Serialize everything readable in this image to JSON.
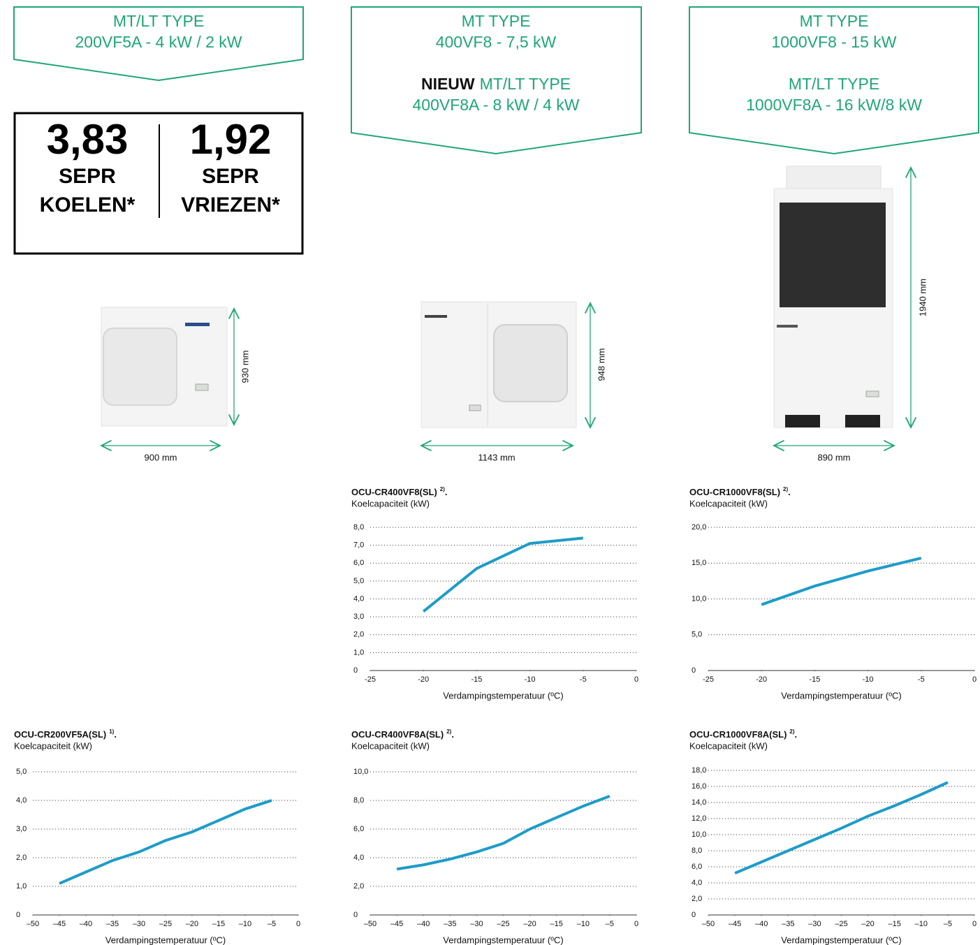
{
  "banners": [
    {
      "groups": [
        [
          "MT/LT TYPE",
          "200VF5A - 4 kW / 2 kW"
        ]
      ]
    },
    {
      "groups": [
        [
          "MT TYPE",
          "400VF8 - 7,5 kW"
        ],
        [
          "MT/LT TYPE",
          "400VF8A - 8 kW / 4 kW"
        ]
      ],
      "badge": "NIEUW"
    },
    {
      "groups": [
        [
          "MT TYPE",
          "1000VF8 - 15 kW"
        ],
        [
          "MT/LT TYPE",
          "1000VF8A - 16 kW/8 kW"
        ]
      ]
    }
  ],
  "sepr": [
    {
      "value": "3,83",
      "label": "SEPR",
      "mode": "KOELEN*"
    },
    {
      "value": "1,92",
      "label": "SEPR",
      "mode": "VRIEZEN*"
    }
  ],
  "products": [
    {
      "height": "930 mm",
      "width": "900 mm"
    },
    {
      "height": "948 mm",
      "width": "1143 mm"
    },
    {
      "height": "1940 mm",
      "width": "890 mm"
    }
  ],
  "chart_data": [
    {
      "type": "line",
      "title": "OCU-CR400VF8(SL)",
      "title_note": "2)",
      "title_end": ".",
      "y_label": "Koelcapaciteit (kW)",
      "x_label": "Verdampingstemperatuur (ºC)",
      "x": [
        -20,
        -15,
        -10,
        -5
      ],
      "series": [
        {
          "color": "#1e9cc8",
          "values": [
            3.3,
            5.7,
            7.1,
            7.4
          ]
        }
      ],
      "xlim": [
        -25,
        0
      ],
      "xticks": [
        -25,
        -20,
        -15,
        -10,
        -5,
        0
      ],
      "ylim": [
        0,
        8
      ],
      "yticks": [
        0,
        {
          "value": 1,
          "label": "1,0"
        },
        {
          "value": 2,
          "label": "2,0"
        },
        {
          "value": 3,
          "label": "3,0"
        },
        {
          "value": 4,
          "label": "4,0"
        },
        {
          "value": 5,
          "label": "5,0"
        },
        {
          "value": 6,
          "label": "6,0"
        },
        {
          "value": 7,
          "label": "7,0"
        },
        {
          "value": 8,
          "label": "8,0"
        }
      ],
      "grid": true
    },
    {
      "type": "line",
      "title": "OCU-CR1000VF8(SL)",
      "title_note": "2)",
      "title_end": ".",
      "y_label": "Koelcapaciteit (kW)",
      "x_label": "Verdampingstemperatuur (ºC)",
      "x": [
        -20,
        -15,
        -10,
        -5
      ],
      "series": [
        {
          "color": "#1e9cc8",
          "values": [
            9.2,
            11.8,
            13.9,
            15.7
          ]
        }
      ],
      "xlim": [
        -25,
        0
      ],
      "xticks": [
        -25,
        -20,
        -15,
        -10,
        -5,
        0
      ],
      "ylim": [
        0,
        20
      ],
      "yticks": [
        0,
        {
          "value": 5,
          "label": "5,0"
        },
        {
          "value": 10,
          "label": "10,0"
        },
        {
          "value": 15,
          "label": "15,0"
        },
        {
          "value": 20,
          "label": "20,0"
        }
      ],
      "grid": true
    },
    {
      "type": "line",
      "title": "OCU-CR200VF5A(SL)",
      "title_note": "1)",
      "title_end": ".",
      "y_label": "Koelcapaciteit (kW)",
      "x_label": "Verdampingstemperatuur (ºC)",
      "x": [
        -45,
        -40,
        -35,
        -30,
        -25,
        -20,
        -15,
        -10,
        -5
      ],
      "series": [
        {
          "color": "#1e9cc8",
          "values": [
            1.1,
            1.5,
            1.9,
            2.2,
            2.6,
            2.9,
            3.3,
            3.7,
            4.0
          ]
        }
      ],
      "xlim": [
        -50,
        0
      ],
      "xticks": [
        {
          "value": -50,
          "label": "–50"
        },
        {
          "value": -45,
          "label": "–45"
        },
        {
          "value": -40,
          "label": "–40"
        },
        {
          "value": -35,
          "label": "–35"
        },
        {
          "value": -30,
          "label": "–30"
        },
        {
          "value": -25,
          "label": "–25"
        },
        {
          "value": -20,
          "label": "–20"
        },
        {
          "value": -15,
          "label": "–15"
        },
        {
          "value": -10,
          "label": "–10"
        },
        {
          "value": -5,
          "label": "–5"
        },
        0
      ],
      "ylim": [
        0,
        5
      ],
      "yticks": [
        0,
        {
          "value": 1,
          "label": "1,0"
        },
        {
          "value": 2,
          "label": "2,0"
        },
        {
          "value": 3,
          "label": "3,0"
        },
        {
          "value": 4,
          "label": "4,0"
        },
        {
          "value": 5,
          "label": "5,0"
        }
      ],
      "grid": true
    },
    {
      "type": "line",
      "title": "OCU-CR400VF8A(SL)",
      "title_note": "2)",
      "title_end": ".",
      "y_label": "Koelcapaciteit (kW)",
      "x_label": "Verdampingstemperatuur (ºC)",
      "x": [
        -45,
        -40,
        -35,
        -30,
        -25,
        -20,
        -15,
        -10,
        -5
      ],
      "series": [
        {
          "color": "#1e9cc8",
          "values": [
            3.2,
            3.5,
            3.9,
            4.4,
            5.0,
            6.0,
            6.8,
            7.6,
            8.3
          ]
        }
      ],
      "xlim": [
        -50,
        0
      ],
      "xticks": [
        {
          "value": -50,
          "label": "–50"
        },
        {
          "value": -45,
          "label": "–45"
        },
        {
          "value": -40,
          "label": "–40"
        },
        {
          "value": -35,
          "label": "–35"
        },
        {
          "value": -30,
          "label": "–30"
        },
        {
          "value": -25,
          "label": "–25"
        },
        {
          "value": -20,
          "label": "–20"
        },
        {
          "value": -15,
          "label": "–15"
        },
        {
          "value": -10,
          "label": "–10"
        },
        {
          "value": -5,
          "label": "–5"
        },
        0
      ],
      "ylim": [
        0,
        10
      ],
      "yticks": [
        0,
        {
          "value": 2,
          "label": "2,0"
        },
        {
          "value": 4,
          "label": "4,0"
        },
        {
          "value": 6,
          "label": "6,0"
        },
        {
          "value": 8,
          "label": "8,0"
        },
        {
          "value": 10,
          "label": "10,0"
        }
      ],
      "grid": true
    },
    {
      "type": "line",
      "title": "OCU-CR1000VF8A(SL)",
      "title_note": "2)",
      "title_end": ".",
      "y_label": "Koelcapaciteit (kW)",
      "x_label": "Verdampingstemperatuur (ºC)",
      "x": [
        -45,
        -40,
        -35,
        -30,
        -25,
        -20,
        -15,
        -10,
        -5
      ],
      "series": [
        {
          "color": "#1e9cc8",
          "values": [
            5.2,
            6.6,
            8.0,
            9.4,
            10.8,
            12.3,
            13.6,
            15.0,
            16.5
          ]
        }
      ],
      "xlim": [
        -50,
        0
      ],
      "xticks": [
        {
          "value": -50,
          "label": "–50"
        },
        {
          "value": -45,
          "label": "–45"
        },
        {
          "value": -40,
          "label": "–40"
        },
        {
          "value": -35,
          "label": "–35"
        },
        {
          "value": -30,
          "label": "–30"
        },
        {
          "value": -25,
          "label": "–25"
        },
        {
          "value": -20,
          "label": "–20"
        },
        {
          "value": -15,
          "label": "–15"
        },
        {
          "value": -10,
          "label": "–10"
        },
        {
          "value": -5,
          "label": "–5"
        },
        0
      ],
      "ylim": [
        0,
        18
      ],
      "yticks": [
        0,
        {
          "value": 2,
          "label": "2,0"
        },
        {
          "value": 4,
          "label": "4,0"
        },
        {
          "value": 6,
          "label": "6,0"
        },
        {
          "value": 8,
          "label": "8,0"
        },
        {
          "value": 10,
          "label": "10,0"
        },
        {
          "value": 12,
          "label": "12,0"
        },
        {
          "value": 14,
          "label": "14,0"
        },
        {
          "value": 16,
          "label": "16,0"
        },
        {
          "value": 18,
          "label": "18,0"
        }
      ],
      "grid": true
    }
  ]
}
